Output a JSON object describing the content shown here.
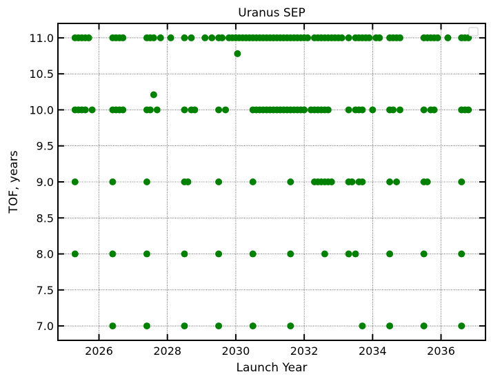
{
  "chart_data": {
    "type": "scatter",
    "title": "Uranus SEP",
    "xlabel": "Launch Year",
    "ylabel": "TOF, years",
    "xlim": [
      2024.8,
      2037.3
    ],
    "ylim": [
      6.8,
      11.2
    ],
    "xticks": [
      2026,
      2028,
      2030,
      2032,
      2034,
      2036
    ],
    "yticks": [
      7.0,
      7.5,
      8.0,
      8.5,
      9.0,
      9.5,
      10.0,
      10.5,
      11.0
    ],
    "xtick_labels": [
      "2026",
      "2028",
      "2030",
      "2032",
      "2034",
      "2036"
    ],
    "ytick_labels": [
      "7.0",
      "7.5",
      "8.0",
      "8.5",
      "9.0",
      "9.5",
      "10.0",
      "10.5",
      "11.0"
    ],
    "grid": true,
    "legend": "upper right (empty)",
    "marker_color": "#008000",
    "series": [
      {
        "points": [
          [
            2025.3,
            11.0
          ],
          [
            2025.4,
            11.0
          ],
          [
            2025.5,
            11.0
          ],
          [
            2025.6,
            11.0
          ],
          [
            2025.7,
            11.0
          ],
          [
            2026.4,
            11.0
          ],
          [
            2026.5,
            11.0
          ],
          [
            2026.6,
            11.0
          ],
          [
            2026.7,
            11.0
          ],
          [
            2027.4,
            11.0
          ],
          [
            2027.5,
            11.0
          ],
          [
            2027.6,
            11.0
          ],
          [
            2027.8,
            11.0
          ],
          [
            2028.1,
            11.0
          ],
          [
            2028.5,
            11.0
          ],
          [
            2028.7,
            11.0
          ],
          [
            2029.1,
            11.0
          ],
          [
            2029.3,
            11.0
          ],
          [
            2029.5,
            11.0
          ],
          [
            2029.6,
            11.0
          ],
          [
            2029.8,
            11.0
          ],
          [
            2029.9,
            11.0
          ],
          [
            2030.0,
            11.0
          ],
          [
            2030.1,
            11.0
          ],
          [
            2030.2,
            11.0
          ],
          [
            2030.3,
            11.0
          ],
          [
            2030.4,
            11.0
          ],
          [
            2030.5,
            11.0
          ],
          [
            2030.6,
            11.0
          ],
          [
            2030.7,
            11.0
          ],
          [
            2030.8,
            11.0
          ],
          [
            2030.9,
            11.0
          ],
          [
            2031.0,
            11.0
          ],
          [
            2031.1,
            11.0
          ],
          [
            2031.2,
            11.0
          ],
          [
            2031.3,
            11.0
          ],
          [
            2031.4,
            11.0
          ],
          [
            2031.5,
            11.0
          ],
          [
            2031.6,
            11.0
          ],
          [
            2031.7,
            11.0
          ],
          [
            2031.8,
            11.0
          ],
          [
            2031.9,
            11.0
          ],
          [
            2032.0,
            11.0
          ],
          [
            2032.1,
            11.0
          ],
          [
            2032.3,
            11.0
          ],
          [
            2032.4,
            11.0
          ],
          [
            2032.5,
            11.0
          ],
          [
            2032.6,
            11.0
          ],
          [
            2032.7,
            11.0
          ],
          [
            2032.8,
            11.0
          ],
          [
            2032.9,
            11.0
          ],
          [
            2033.0,
            11.0
          ],
          [
            2033.1,
            11.0
          ],
          [
            2033.3,
            11.0
          ],
          [
            2033.5,
            11.0
          ],
          [
            2033.6,
            11.0
          ],
          [
            2033.7,
            11.0
          ],
          [
            2033.8,
            11.0
          ],
          [
            2033.9,
            11.0
          ],
          [
            2034.1,
            11.0
          ],
          [
            2034.2,
            11.0
          ],
          [
            2034.5,
            11.0
          ],
          [
            2034.6,
            11.0
          ],
          [
            2034.7,
            11.0
          ],
          [
            2034.8,
            11.0
          ],
          [
            2035.5,
            11.0
          ],
          [
            2035.6,
            11.0
          ],
          [
            2035.7,
            11.0
          ],
          [
            2035.8,
            11.0
          ],
          [
            2035.9,
            11.0
          ],
          [
            2036.2,
            11.0
          ],
          [
            2036.6,
            11.0
          ],
          [
            2036.7,
            11.0
          ],
          [
            2036.8,
            11.0
          ],
          [
            2030.05,
            10.78
          ],
          [
            2027.6,
            10.21
          ],
          [
            2025.3,
            10.0
          ],
          [
            2025.4,
            10.0
          ],
          [
            2025.5,
            10.0
          ],
          [
            2025.6,
            10.0
          ],
          [
            2025.8,
            10.0
          ],
          [
            2026.4,
            10.0
          ],
          [
            2026.5,
            10.0
          ],
          [
            2026.6,
            10.0
          ],
          [
            2026.7,
            10.0
          ],
          [
            2027.4,
            10.0
          ],
          [
            2027.5,
            10.0
          ],
          [
            2027.7,
            10.0
          ],
          [
            2028.5,
            10.0
          ],
          [
            2028.7,
            10.0
          ],
          [
            2028.8,
            10.0
          ],
          [
            2029.5,
            10.0
          ],
          [
            2029.7,
            10.0
          ],
          [
            2030.5,
            10.0
          ],
          [
            2030.6,
            10.0
          ],
          [
            2030.7,
            10.0
          ],
          [
            2030.8,
            10.0
          ],
          [
            2030.9,
            10.0
          ],
          [
            2031.0,
            10.0
          ],
          [
            2031.1,
            10.0
          ],
          [
            2031.2,
            10.0
          ],
          [
            2031.3,
            10.0
          ],
          [
            2031.4,
            10.0
          ],
          [
            2031.5,
            10.0
          ],
          [
            2031.6,
            10.0
          ],
          [
            2031.7,
            10.0
          ],
          [
            2031.8,
            10.0
          ],
          [
            2031.9,
            10.0
          ],
          [
            2032.0,
            10.0
          ],
          [
            2032.2,
            10.0
          ],
          [
            2032.3,
            10.0
          ],
          [
            2032.4,
            10.0
          ],
          [
            2032.5,
            10.0
          ],
          [
            2032.6,
            10.0
          ],
          [
            2032.7,
            10.0
          ],
          [
            2033.3,
            10.0
          ],
          [
            2033.5,
            10.0
          ],
          [
            2033.6,
            10.0
          ],
          [
            2033.7,
            10.0
          ],
          [
            2034.0,
            10.0
          ],
          [
            2034.5,
            10.0
          ],
          [
            2034.6,
            10.0
          ],
          [
            2034.8,
            10.0
          ],
          [
            2035.5,
            10.0
          ],
          [
            2035.7,
            10.0
          ],
          [
            2035.8,
            10.0
          ],
          [
            2036.6,
            10.0
          ],
          [
            2036.7,
            10.0
          ],
          [
            2036.8,
            10.0
          ],
          [
            2025.3,
            9.0
          ],
          [
            2026.4,
            9.0
          ],
          [
            2027.4,
            9.0
          ],
          [
            2028.5,
            9.0
          ],
          [
            2028.6,
            9.0
          ],
          [
            2029.5,
            9.0
          ],
          [
            2030.5,
            9.0
          ],
          [
            2031.6,
            9.0
          ],
          [
            2032.3,
            9.0
          ],
          [
            2032.4,
            9.0
          ],
          [
            2032.5,
            9.0
          ],
          [
            2032.6,
            9.0
          ],
          [
            2032.7,
            9.0
          ],
          [
            2032.8,
            9.0
          ],
          [
            2033.3,
            9.0
          ],
          [
            2033.4,
            9.0
          ],
          [
            2033.6,
            9.0
          ],
          [
            2033.7,
            9.0
          ],
          [
            2034.5,
            9.0
          ],
          [
            2034.7,
            9.0
          ],
          [
            2035.5,
            9.0
          ],
          [
            2035.6,
            9.0
          ],
          [
            2036.6,
            9.0
          ],
          [
            2025.3,
            8.0
          ],
          [
            2026.4,
            8.0
          ],
          [
            2027.4,
            8.0
          ],
          [
            2028.5,
            8.0
          ],
          [
            2029.5,
            8.0
          ],
          [
            2030.5,
            8.0
          ],
          [
            2031.6,
            8.0
          ],
          [
            2032.6,
            8.0
          ],
          [
            2033.3,
            8.0
          ],
          [
            2033.5,
            8.0
          ],
          [
            2034.5,
            8.0
          ],
          [
            2035.5,
            8.0
          ],
          [
            2036.6,
            8.0
          ],
          [
            2026.4,
            7.0
          ],
          [
            2027.4,
            7.0
          ],
          [
            2028.5,
            7.0
          ],
          [
            2029.5,
            7.0
          ],
          [
            2030.5,
            7.0
          ],
          [
            2031.6,
            7.0
          ],
          [
            2033.7,
            7.0
          ],
          [
            2034.5,
            7.0
          ],
          [
            2035.5,
            7.0
          ],
          [
            2036.6,
            7.0
          ]
        ]
      }
    ]
  }
}
